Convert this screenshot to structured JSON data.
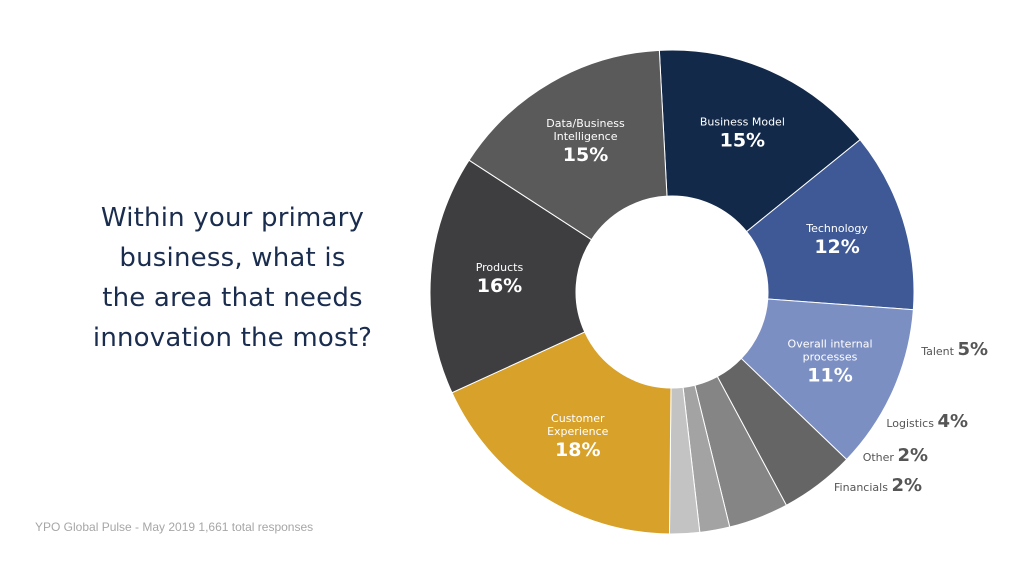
{
  "question": {
    "lines": [
      "Within your primary",
      "business, what is",
      "the area that needs",
      "innovation the most?"
    ]
  },
  "source": "YPO Global Pulse - May 2019 1,661 total responses",
  "chart_data": {
    "type": "pie",
    "donut": true,
    "title": "Within your primary business, what is the area that needs innovation the most?",
    "value_format": "percent",
    "slices": [
      {
        "name": "Business Model",
        "label_lines": [
          "Business Model"
        ],
        "value": 15,
        "color": "#12294a",
        "label_placement": "inside"
      },
      {
        "name": "Technology",
        "label_lines": [
          "Technology"
        ],
        "value": 12,
        "color": "#3e5995",
        "label_placement": "inside"
      },
      {
        "name": "Overall internal processes",
        "label_lines": [
          "Overall internal",
          "processes"
        ],
        "value": 11,
        "color": "#7c8fc3",
        "label_placement": "inside"
      },
      {
        "name": "Talent",
        "label_lines": [
          "Talent"
        ],
        "value": 5,
        "color": "#656565",
        "label_placement": "outside"
      },
      {
        "name": "Logistics",
        "label_lines": [
          "Logistics"
        ],
        "value": 4,
        "color": "#858585",
        "label_placement": "outside"
      },
      {
        "name": "Other",
        "label_lines": [
          "Other"
        ],
        "value": 2,
        "color": "#a3a3a3",
        "label_placement": "outside"
      },
      {
        "name": "Financials",
        "label_lines": [
          "Financials"
        ],
        "value": 2,
        "color": "#c3c3c3",
        "label_placement": "outside"
      },
      {
        "name": "Customer Experience",
        "label_lines": [
          "Customer",
          "Experience"
        ],
        "value": 18,
        "color": "#d7a12a",
        "label_placement": "inside"
      },
      {
        "name": "Products",
        "label_lines": [
          "Products"
        ],
        "value": 16,
        "color": "#3e3e41",
        "label_placement": "inside"
      },
      {
        "name": "Data/Business Intelligence",
        "label_lines": [
          "Data/Business",
          "Intelligence"
        ],
        "value": 15,
        "color": "#5a5a5a",
        "label_placement": "inside"
      }
    ]
  }
}
